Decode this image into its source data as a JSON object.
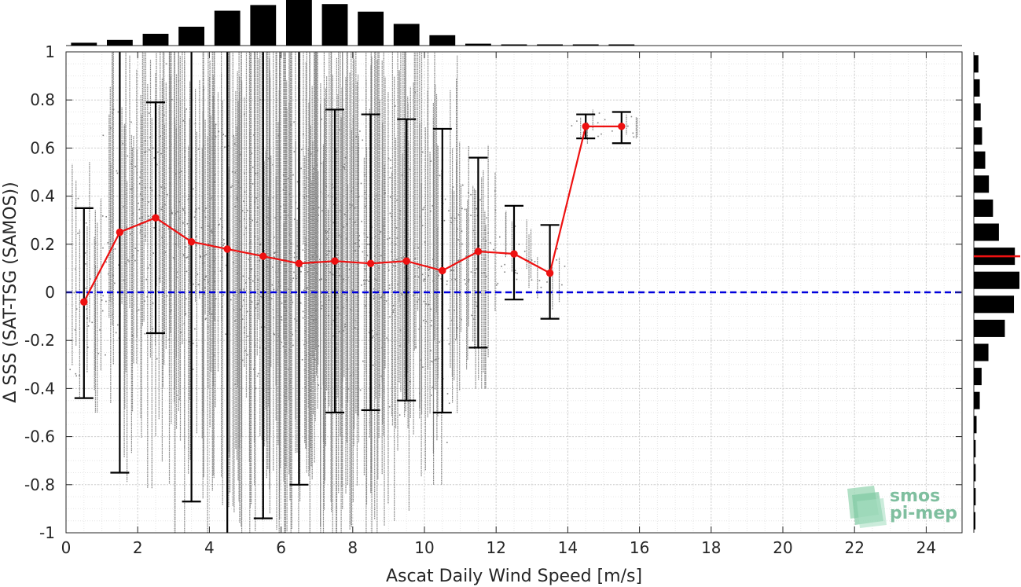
{
  "chart_data": {
    "type": "scatter",
    "xlabel": "Ascat Daily Wind Speed [m/s]",
    "ylabel": "Δ SSS (SAT-TSG (SAMOS))",
    "xlim": [
      0,
      25
    ],
    "ylim": [
      -1,
      1
    ],
    "x_ticks": [
      "0",
      "2",
      "4",
      "6",
      "8",
      "10",
      "12",
      "14",
      "16",
      "18",
      "20",
      "22",
      "24"
    ],
    "y_ticks": [
      "-1",
      "-0.8",
      "-0.6",
      "-0.4",
      "-0.2",
      "0",
      "0.2",
      "0.4",
      "0.6",
      "0.8",
      "1"
    ],
    "grid": true,
    "zero_line": {
      "y": 0,
      "color": "#0000dd",
      "style": "dashed"
    },
    "binned_mean": {
      "color": "#ee1111",
      "x": [
        0.5,
        1.5,
        2.5,
        3.5,
        4.5,
        5.5,
        6.5,
        7.5,
        8.5,
        9.5,
        10.5,
        11.5,
        12.5,
        13.5,
        14.5,
        15.5
      ],
      "mean": [
        -0.04,
        0.25,
        0.31,
        0.21,
        0.18,
        0.15,
        0.12,
        0.13,
        0.12,
        0.13,
        0.09,
        0.17,
        0.16,
        0.08,
        0.69,
        0.69
      ],
      "err_low": [
        -0.44,
        -0.75,
        -0.17,
        -0.87,
        -1.05,
        -0.94,
        -0.8,
        -0.5,
        -0.49,
        -0.45,
        -0.5,
        -0.23,
        -0.03,
        -0.11,
        0.64,
        0.62
      ],
      "err_high": [
        0.35,
        1.05,
        0.79,
        1.05,
        1.05,
        1.05,
        1.05,
        0.76,
        0.74,
        0.72,
        0.68,
        0.56,
        0.36,
        0.28,
        0.74,
        0.75
      ]
    },
    "scatter_color": "#808080",
    "scatter_bins": [
      {
        "x0": 0.0,
        "x1": 1.0,
        "lo": -0.5,
        "hi": 0.95,
        "density": 0.25
      },
      {
        "x0": 1.0,
        "x1": 2.0,
        "lo": -0.9,
        "hi": 1.0,
        "density": 0.45
      },
      {
        "x0": 2.0,
        "x1": 3.0,
        "lo": -1.0,
        "hi": 1.0,
        "density": 0.65
      },
      {
        "x0": 3.0,
        "x1": 4.0,
        "lo": -1.0,
        "hi": 1.0,
        "density": 0.8
      },
      {
        "x0": 4.0,
        "x1": 5.0,
        "lo": -1.0,
        "hi": 1.0,
        "density": 0.9
      },
      {
        "x0": 5.0,
        "x1": 6.0,
        "lo": -1.0,
        "hi": 1.0,
        "density": 0.95
      },
      {
        "x0": 6.0,
        "x1": 7.0,
        "lo": -1.0,
        "hi": 1.0,
        "density": 1.0
      },
      {
        "x0": 7.0,
        "x1": 8.0,
        "lo": -1.0,
        "hi": 1.0,
        "density": 0.95
      },
      {
        "x0": 8.0,
        "x1": 9.0,
        "lo": -1.0,
        "hi": 1.0,
        "density": 0.85
      },
      {
        "x0": 9.0,
        "x1": 10.0,
        "lo": -0.95,
        "hi": 1.0,
        "density": 0.7
      },
      {
        "x0": 10.0,
        "x1": 11.0,
        "lo": -0.8,
        "hi": 1.0,
        "density": 0.55
      },
      {
        "x0": 11.0,
        "x1": 12.0,
        "lo": -0.4,
        "hi": 0.95,
        "density": 0.35
      },
      {
        "x0": 12.0,
        "x1": 13.0,
        "lo": -0.05,
        "hi": 0.4,
        "density": 0.15
      },
      {
        "x0": 13.0,
        "x1": 14.0,
        "lo": -0.1,
        "hi": 0.3,
        "density": 0.08
      },
      {
        "x0": 14.0,
        "x1": 15.0,
        "lo": 0.6,
        "hi": 0.8,
        "density": 0.06
      },
      {
        "x0": 15.0,
        "x1": 16.0,
        "lo": 0.6,
        "hi": 0.8,
        "density": 0.05
      }
    ],
    "top_histogram": {
      "x": [
        0.5,
        1.5,
        2.5,
        3.5,
        4.5,
        5.5,
        6.5,
        7.5,
        8.5,
        9.5,
        10.5,
        11.5,
        12.5,
        13.5,
        14.5,
        15.5
      ],
      "values": [
        0.06,
        0.12,
        0.25,
        0.4,
        0.74,
        0.86,
        1.0,
        0.88,
        0.72,
        0.46,
        0.22,
        0.04,
        0.015,
        0.01,
        0.01,
        0.01
      ]
    },
    "right_histogram": {
      "y": [
        0.95,
        0.85,
        0.75,
        0.65,
        0.55,
        0.45,
        0.35,
        0.25,
        0.15,
        0.05,
        -0.05,
        -0.15,
        -0.25,
        -0.35,
        -0.45,
        -0.55,
        -0.65,
        -0.75,
        -0.85,
        -0.95
      ],
      "values": [
        0.1,
        0.13,
        0.15,
        0.18,
        0.25,
        0.33,
        0.42,
        0.55,
        0.9,
        1.0,
        0.88,
        0.68,
        0.32,
        0.17,
        0.13,
        0.06,
        0.04,
        0.04,
        0.04,
        0.03
      ],
      "mean_line": {
        "y": 0.15,
        "color": "#ee1111"
      }
    }
  },
  "logo": {
    "line1": "smos",
    "line2": "pi-mep"
  }
}
